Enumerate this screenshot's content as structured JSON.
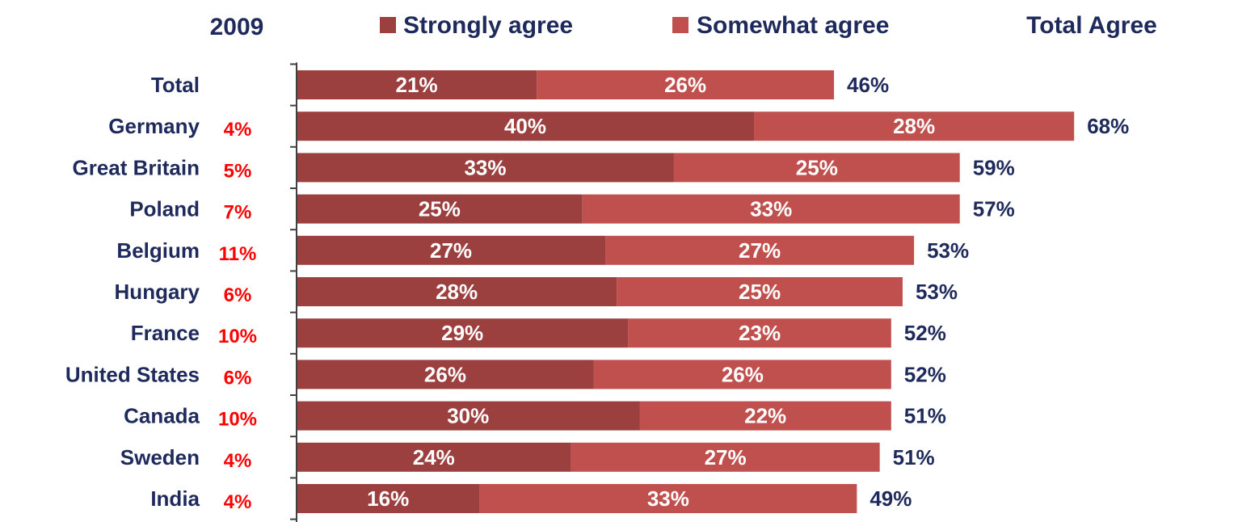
{
  "chart_data": {
    "type": "bar",
    "orientation": "horizontal",
    "stacked": true,
    "year_label": "2009",
    "total_header": "Total Agree",
    "legend_placement": "top",
    "categories": [
      "Total",
      "Germany",
      "Great Britain",
      "Poland",
      "Belgium",
      "Hungary",
      "France",
      "United States",
      "Canada",
      "Sweden",
      "India"
    ],
    "side_values": [
      "",
      "4%",
      "5%",
      "7%",
      "11%",
      "6%",
      "10%",
      "6%",
      "10%",
      "4%",
      "4%"
    ],
    "series": [
      {
        "name": "Strongly agree",
        "color": "#9b3f3f",
        "values": [
          21,
          40,
          33,
          25,
          27,
          28,
          29,
          26,
          30,
          24,
          16
        ],
        "labels": [
          "21%",
          "40%",
          "33%",
          "25%",
          "27%",
          "28%",
          "29%",
          "26%",
          "30%",
          "24%",
          "16%"
        ]
      },
      {
        "name": "Somewhat agree",
        "color": "#c0504d",
        "values": [
          26,
          28,
          25,
          33,
          27,
          25,
          23,
          26,
          22,
          27,
          33
        ],
        "labels": [
          "26%",
          "28%",
          "25%",
          "33%",
          "27%",
          "25%",
          "23%",
          "26%",
          "22%",
          "27%",
          "33%"
        ]
      }
    ],
    "totals": [
      46,
      68,
      59,
      57,
      53,
      53,
      52,
      52,
      51,
      51,
      49
    ],
    "total_labels": [
      "46%",
      "68%",
      "59%",
      "57%",
      "53%",
      "53%",
      "52%",
      "52%",
      "51%",
      "51%",
      "49%"
    ],
    "xlim": [
      0,
      68
    ],
    "grid": false,
    "colors": {
      "text": "#1f2a5c",
      "side_values": "#ff0000",
      "axis": "#404040"
    }
  }
}
